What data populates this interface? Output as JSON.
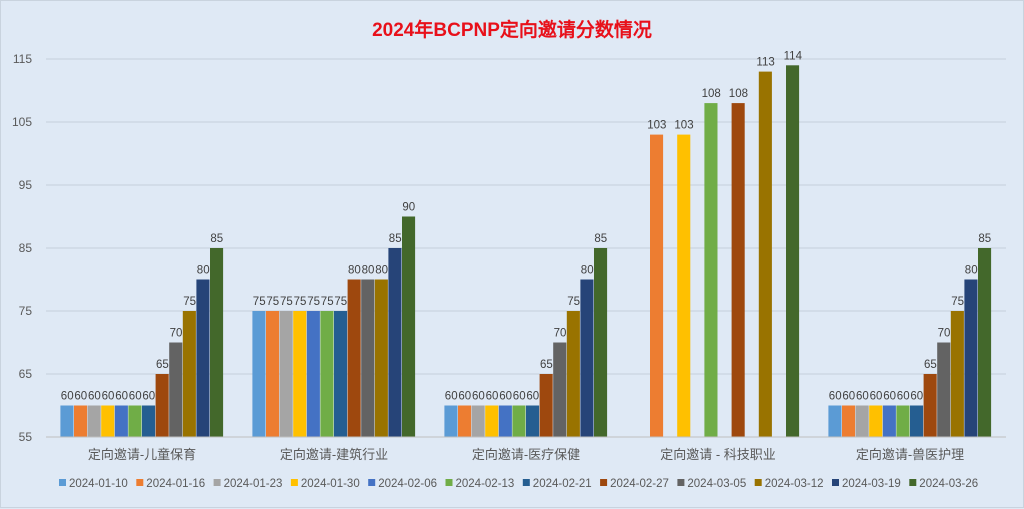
{
  "chart_data": {
    "type": "bar",
    "title": "2024年BCPNP定向邀请分数情况",
    "xlabel": "",
    "ylabel": "",
    "ylim": [
      55,
      115
    ],
    "yticks": [
      55,
      65,
      75,
      85,
      95,
      105,
      115
    ],
    "grid": true,
    "legend_position": "bottom",
    "categories": [
      "定向邀请-儿童保育",
      "定向邀请-建筑行业",
      "定向邀请-医疗保健",
      "定向邀请 - 科技职业",
      "定向邀请-兽医护理"
    ],
    "series": [
      {
        "name": "2024-01-10",
        "color": "#5b9bd5",
        "values": [
          60,
          75,
          60,
          null,
          60
        ]
      },
      {
        "name": "2024-01-16",
        "color": "#ed7d31",
        "values": [
          60,
          75,
          60,
          103,
          60
        ]
      },
      {
        "name": "2024-01-23",
        "color": "#a5a5a5",
        "values": [
          60,
          75,
          60,
          null,
          60
        ]
      },
      {
        "name": "2024-01-30",
        "color": "#ffc000",
        "values": [
          60,
          75,
          60,
          103,
          60
        ]
      },
      {
        "name": "2024-02-06",
        "color": "#4472c4",
        "values": [
          60,
          75,
          60,
          null,
          60
        ]
      },
      {
        "name": "2024-02-13",
        "color": "#70ad47",
        "values": [
          60,
          75,
          60,
          108,
          60
        ]
      },
      {
        "name": "2024-02-21",
        "color": "#255e91",
        "values": [
          60,
          75,
          60,
          null,
          60
        ]
      },
      {
        "name": "2024-02-27",
        "color": "#9e480e",
        "values": [
          65,
          80,
          65,
          108,
          65
        ]
      },
      {
        "name": "2024-03-05",
        "color": "#636363",
        "values": [
          70,
          80,
          70,
          null,
          70
        ]
      },
      {
        "name": "2024-03-12",
        "color": "#997300",
        "values": [
          75,
          80,
          75,
          113,
          75
        ]
      },
      {
        "name": "2024-03-19",
        "color": "#264478",
        "values": [
          80,
          85,
          80,
          null,
          80
        ]
      },
      {
        "name": "2024-03-26",
        "color": "#43682b",
        "values": [
          85,
          90,
          85,
          114,
          85
        ]
      }
    ]
  }
}
